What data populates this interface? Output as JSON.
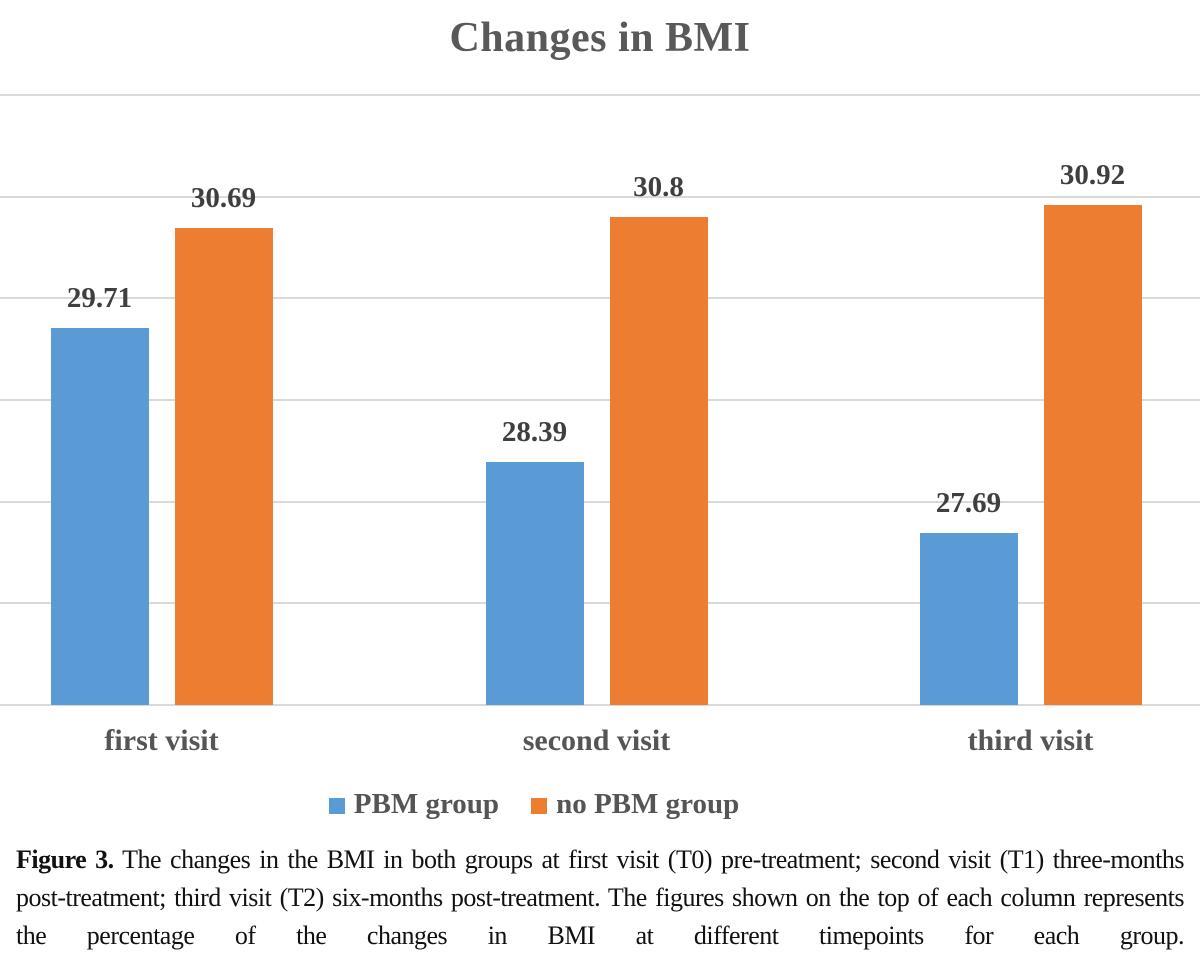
{
  "chart_data": {
    "type": "bar",
    "title": "Changes in BMI",
    "categories": [
      "first visit",
      "second visit",
      "third visit"
    ],
    "series": [
      {
        "name": "PBM group",
        "color": "#5B9BD5",
        "values": [
          29.71,
          28.39,
          27.69
        ],
        "labels": [
          "29.71",
          "28.39",
          "27.69"
        ]
      },
      {
        "name": "no PBM group",
        "color": "#ED7D31",
        "values": [
          30.69,
          30.8,
          30.92
        ],
        "labels": [
          "30.69",
          "30.8",
          "30.92"
        ]
      }
    ],
    "ylim": [
      26,
      32
    ],
    "gridline_step": 1,
    "grid": "horizontal-only",
    "y_axis_labels_visible": false,
    "legend_position": "bottom",
    "colors": {
      "gridline": "#d9d9d9",
      "title_text": "#595959",
      "value_label_text": "#3f3f3f",
      "category_label_text": "#555555"
    }
  },
  "caption": {
    "label": "Figure 3.",
    "text": " The changes in the BMI in both groups at first visit (T0) pre-treatment; second visit (T1) three-months post-treatment; third visit (T2) six-months post-treatment. The figures shown on the top of each column represents the percentage of the changes in BMI at different timepoints for each group."
  }
}
